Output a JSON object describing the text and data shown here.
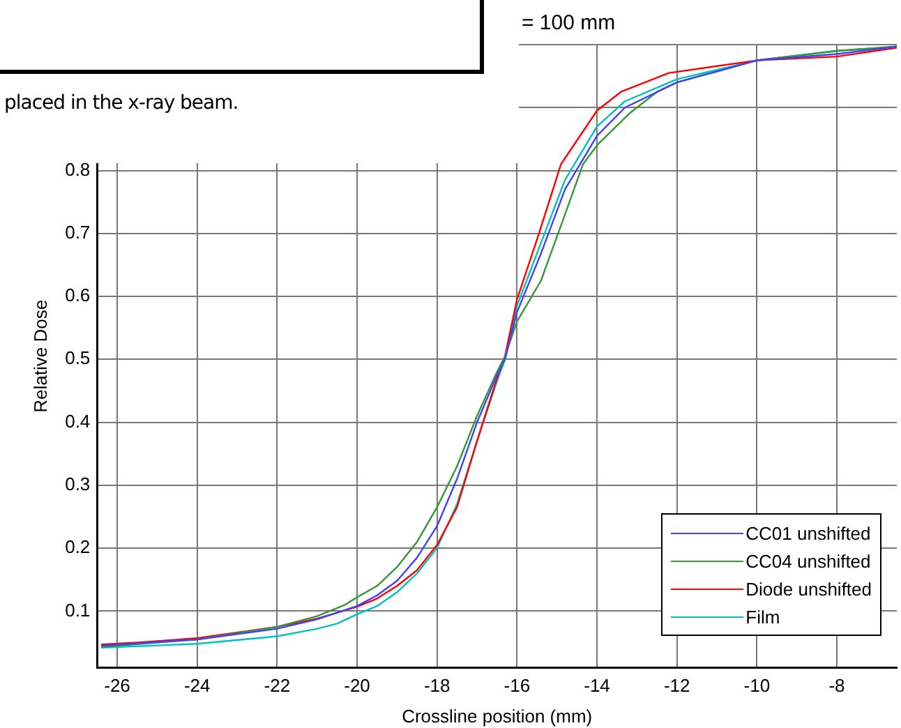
{
  "chart_data": {
    "type": "line",
    "xlabel": "Crossline position (mm)",
    "ylabel": "Relative Dose",
    "annotations": [
      "= 100 mm",
      "placed in the x-ray beam."
    ],
    "xlim": [
      -26.5,
      -6.5
    ],
    "xticks": [
      -26,
      -24,
      -22,
      -20,
      -18,
      -16,
      -14,
      -12,
      -10,
      -8
    ],
    "ylim": [
      0.01,
      1.0
    ],
    "yticks": [
      0.1,
      0.2,
      0.3,
      0.4,
      0.5,
      0.6,
      0.7,
      0.8,
      {
        "value": 0.9,
        "label": null
      },
      {
        "value": 1.0,
        "label": null
      }
    ],
    "grid": true,
    "legend": "bottom right",
    "marker": "none",
    "line_style": "solid",
    "series": [
      {
        "name": "CC01 unshifted",
        "color": "#4040ff",
        "x": [
          -26.4,
          -24,
          -22,
          -21,
          -20,
          -19.5,
          -19,
          -18.5,
          -18,
          -17.5,
          -17,
          -16.5,
          -16.3,
          -16,
          -15.4,
          -14.8,
          -14,
          -13.3,
          -12,
          -10,
          -8,
          -6.5
        ],
        "values": [
          0.045,
          0.055,
          0.072,
          0.087,
          0.108,
          0.125,
          0.148,
          0.185,
          0.235,
          0.31,
          0.4,
          0.475,
          0.5,
          0.575,
          0.668,
          0.77,
          0.855,
          0.9,
          0.94,
          0.975,
          0.985,
          0.997
        ]
      },
      {
        "name": "CC04 unshifted",
        "color": "#339933",
        "x": [
          -26.4,
          -24,
          -22,
          -21,
          -20.3,
          -20,
          -19.5,
          -19,
          -18.5,
          -18,
          -17.5,
          -17,
          -16.5,
          -16.3,
          -16,
          -15.4,
          -14.8,
          -14.35,
          -14,
          -13.2,
          -12.5,
          -12,
          -10,
          -8,
          -6.5
        ],
        "values": [
          0.043,
          0.055,
          0.075,
          0.092,
          0.11,
          0.122,
          0.14,
          0.17,
          0.21,
          0.265,
          0.33,
          0.41,
          0.48,
          0.505,
          0.56,
          0.625,
          0.73,
          0.81,
          0.84,
          0.89,
          0.925,
          0.94,
          0.975,
          0.99,
          0.997
        ]
      },
      {
        "name": "Diode unshifted",
        "color": "#ff0000",
        "x": [
          -26.4,
          -25.5,
          -24,
          -22,
          -21,
          -20,
          -19.5,
          -19,
          -18.5,
          -18,
          -17.5,
          -17,
          -16.5,
          -16.3,
          -16,
          -15.45,
          -14.9,
          -14,
          -13.4,
          -12.2,
          -10,
          -8,
          -6.5
        ],
        "values": [
          0.047,
          0.05,
          0.057,
          0.075,
          0.088,
          0.107,
          0.12,
          0.14,
          0.165,
          0.205,
          0.265,
          0.37,
          0.47,
          0.505,
          0.595,
          0.7,
          0.81,
          0.895,
          0.925,
          0.955,
          0.975,
          0.981,
          0.995
        ]
      },
      {
        "name": "Film",
        "color": "#00c0c0",
        "x": [
          -26.4,
          -24,
          -22,
          -21,
          -20.5,
          -20,
          -19.5,
          -19,
          -18.5,
          -18,
          -17.5,
          -17,
          -16.5,
          -16.3,
          -16,
          -15.4,
          -14.8,
          -14,
          -13.3,
          -12,
          -10,
          -8,
          -6.5
        ],
        "values": [
          0.042,
          0.048,
          0.06,
          0.072,
          0.08,
          0.095,
          0.108,
          0.13,
          0.16,
          0.2,
          0.27,
          0.37,
          0.465,
          0.5,
          0.585,
          0.685,
          0.785,
          0.87,
          0.91,
          0.945,
          0.975,
          0.99,
          0.997
        ]
      }
    ]
  }
}
